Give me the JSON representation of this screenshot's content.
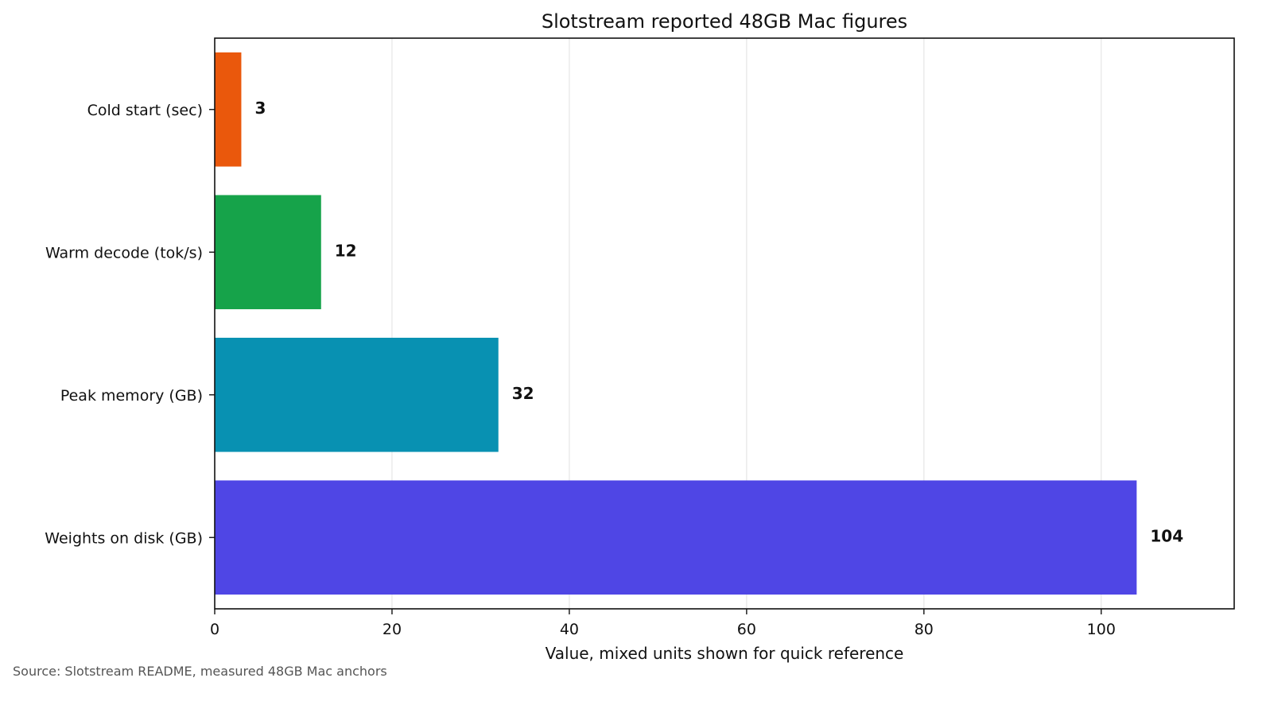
{
  "chart_data": {
    "type": "bar",
    "orientation": "horizontal",
    "title": "Slotstream reported 48GB Mac figures",
    "xlabel": "Value, mixed units shown for quick reference",
    "ylabel": "",
    "categories": [
      "Cold start (sec)",
      "Warm decode (tok/s)",
      "Peak memory (GB)",
      "Weights on disk (GB)"
    ],
    "values": [
      3,
      12,
      32,
      104
    ],
    "data_labels": [
      "3",
      "12",
      "32",
      "104"
    ],
    "colors": [
      "#ea580c",
      "#16a34a",
      "#0891b2",
      "#4f46e5"
    ],
    "xlim": [
      0,
      115
    ],
    "xticks": [
      0,
      20,
      40,
      60,
      80,
      100
    ],
    "xtick_labels": [
      "0",
      "20",
      "40",
      "60",
      "80",
      "100"
    ],
    "grid": "vertical",
    "legend": "none"
  },
  "source_note": "Source: Slotstream README, measured 48GB Mac anchors"
}
